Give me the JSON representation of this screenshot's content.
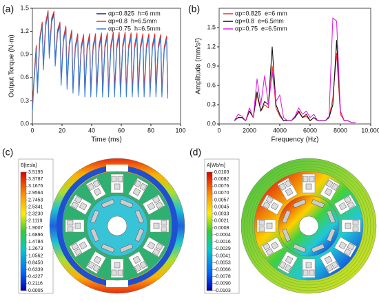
{
  "chart_data": [
    {
      "type": "line",
      "panel_label": "(a)",
      "xlabel": "Time (ms)",
      "ylabel": "Output Torque (N·m)",
      "x": [
        0,
        1,
        2.6,
        3.4,
        5,
        6.6,
        7.4,
        9,
        10.6,
        11.4,
        13,
        14.6,
        15.4,
        17,
        18.6,
        19.4,
        21,
        22.6,
        23.4,
        25,
        26.6,
        27.4,
        29,
        30.6,
        31.4,
        33,
        34.6,
        35.4,
        37,
        38.6,
        39.4,
        41,
        42.6,
        43.4,
        45,
        46.6,
        47.4,
        49,
        50.6,
        51.4,
        53,
        54.6,
        55.4,
        57,
        58.6,
        59.4,
        61,
        62.6,
        63.4,
        65,
        66.6,
        67.4,
        69,
        70.6,
        71.4,
        73,
        74.6,
        75.4,
        77,
        78.6,
        79.4,
        81,
        82.6,
        83.4,
        85,
        86.6,
        87.4,
        89,
        90.6,
        91.4
      ],
      "series": [
        {
          "name": "αp=0.825  h=6 mm",
          "color": "#1a2a6c",
          "values": [
            0.2,
            0.55,
            1.0,
            0.45,
            1.1,
            1.3,
            0.75,
            1.3,
            1.45,
            0.9,
            1.35,
            1.44,
            0.8,
            1.2,
            1.3,
            0.55,
            1.1,
            1.25,
            0.5,
            1.05,
            1.2,
            0.45,
            1.0,
            1.15,
            0.42,
            1.0,
            1.14,
            0.4,
            1.0,
            1.15,
            0.4,
            1.0,
            1.15,
            0.4,
            1.0,
            1.16,
            0.4,
            1.01,
            1.16,
            0.4,
            1.01,
            1.17,
            0.4,
            1.01,
            1.17,
            0.4,
            1.01,
            1.17,
            0.4,
            1.0,
            1.16,
            0.4,
            1.0,
            1.16,
            0.4,
            1.0,
            1.15,
            0.4,
            1.0,
            1.15,
            0.4,
            1.0,
            1.15,
            0.4,
            1.0,
            1.14,
            0.4,
            0.98,
            1.12,
            0.38
          ]
        },
        {
          "name": "αp=0.8  h=6.5mm",
          "color": "#e8312a",
          "values": [
            0.2,
            0.57,
            1.02,
            0.47,
            1.12,
            1.32,
            0.77,
            1.32,
            1.47,
            0.92,
            1.37,
            1.46,
            0.82,
            1.22,
            1.32,
            0.57,
            1.12,
            1.27,
            0.52,
            1.07,
            1.22,
            0.47,
            1.02,
            1.17,
            0.44,
            1.02,
            1.16,
            0.42,
            1.02,
            1.17,
            0.42,
            1.02,
            1.17,
            0.42,
            1.02,
            1.18,
            0.42,
            1.03,
            1.18,
            0.42,
            1.03,
            1.19,
            0.42,
            1.03,
            1.19,
            0.42,
            1.03,
            1.19,
            0.42,
            1.02,
            1.18,
            0.42,
            1.02,
            1.18,
            0.42,
            1.02,
            1.17,
            0.42,
            1.02,
            1.17,
            0.42,
            1.02,
            1.17,
            0.42,
            1.02,
            1.16,
            0.42,
            1.0,
            1.14,
            0.4
          ]
        },
        {
          "name": "αp=0.75  h=6.5mm",
          "color": "#3a7fd5",
          "values": [
            0.15,
            0.5,
            0.97,
            0.4,
            1.07,
            1.27,
            0.7,
            1.27,
            1.42,
            0.85,
            1.32,
            1.41,
            0.75,
            1.17,
            1.27,
            0.5,
            1.07,
            1.22,
            0.45,
            1.02,
            1.17,
            0.4,
            0.97,
            1.12,
            0.37,
            0.97,
            1.11,
            0.35,
            0.97,
            1.12,
            0.35,
            0.97,
            1.12,
            0.35,
            0.97,
            1.13,
            0.35,
            0.98,
            1.13,
            0.35,
            0.98,
            1.14,
            0.35,
            0.98,
            1.14,
            0.35,
            0.98,
            1.14,
            0.35,
            0.97,
            1.13,
            0.35,
            0.97,
            1.13,
            0.35,
            0.97,
            1.12,
            0.35,
            0.97,
            1.12,
            0.35,
            0.97,
            1.12,
            0.35,
            0.97,
            1.11,
            0.35,
            0.95,
            1.09,
            0.33
          ]
        }
      ],
      "xlim": [
        0,
        100
      ],
      "xticks": [
        0,
        20,
        40,
        60,
        80,
        100
      ],
      "ylim": [
        0,
        1.5
      ],
      "yticks": [
        {
          "value": 0,
          "label": "0.0"
        },
        0.3,
        0.6,
        0.9,
        1.2,
        1.5
      ],
      "grid": false,
      "legend": "upper right"
    },
    {
      "type": "line",
      "panel_label": "(b)",
      "xlabel": "Frequency (Hz)",
      "ylabel": "Amplitude (mm/s²)",
      "x": [
        1000,
        1250,
        1500,
        1750,
        2000,
        2250,
        2500,
        2750,
        3000,
        3250,
        3500,
        3750,
        4000,
        4250,
        4500,
        4750,
        5000,
        5250,
        5500,
        5750,
        6000,
        6250,
        6500,
        6750,
        7000,
        7250,
        7500,
        7750,
        8000,
        8250,
        8500,
        8750,
        9000
      ],
      "series": [
        {
          "name": "αp=0.825  e=6 mm",
          "color": "#e8312a",
          "values": [
            0.05,
            0.1,
            0.1,
            0.05,
            0.2,
            0.1,
            0.45,
            0.2,
            0.3,
            0.25,
            0.9,
            0.25,
            0.12,
            0.05,
            0.05,
            0.05,
            0.1,
            0.18,
            0.1,
            0.12,
            0.05,
            0.1,
            0.05,
            0.05,
            0.05,
            0.1,
            0.4,
            1.1,
            0.15,
            0.05,
            0.05,
            0.02,
            0.02
          ]
        },
        {
          "name": "αp=0.8  e=6.5mm",
          "color": "#111111",
          "values": [
            0.05,
            0.1,
            0.1,
            0.05,
            0.2,
            0.1,
            0.5,
            0.2,
            0.35,
            0.3,
            1.2,
            0.3,
            0.15,
            0.05,
            0.05,
            0.05,
            0.1,
            0.2,
            0.1,
            0.15,
            0.05,
            0.1,
            0.05,
            0.05,
            0.05,
            0.1,
            0.3,
            1.3,
            0.2,
            0.05,
            0.05,
            0.02,
            0.02
          ]
        },
        {
          "name": "αp=0.75  e=6.5mm",
          "color": "#e020e0",
          "values": [
            0.05,
            0.15,
            0.12,
            0.05,
            0.25,
            0.1,
            0.7,
            0.3,
            0.75,
            0.3,
            0.8,
            0.35,
            0.45,
            0.1,
            0.05,
            0.05,
            0.12,
            0.25,
            0.15,
            0.2,
            0.1,
            0.15,
            0.05,
            0.05,
            0.05,
            0.12,
            1.65,
            1.6,
            0.2,
            0.05,
            0.05,
            0.02,
            0.02
          ]
        }
      ],
      "xlim": [
        0,
        10000
      ],
      "xticks": [
        0,
        2000,
        4000,
        6000,
        8000,
        {
          "value": 10000,
          "label": "10,000"
        }
      ],
      "ylim": [
        0,
        1.8
      ],
      "yticks": [
        {
          "value": 0,
          "label": "0.0"
        },
        0.3,
        0.6,
        0.9,
        1.2,
        1.5
      ],
      "grid": false,
      "legend": "upper left"
    }
  ],
  "contour_plots": [
    {
      "label": "(c)",
      "title": "B[tesla]",
      "levels": [
        "3.5195",
        "3.3787",
        "3.1676",
        "2.9564",
        "2.7453",
        "2.5341",
        "2.3230",
        "2.1119",
        "1.9007",
        "1.6896",
        "1.4784",
        "1.2673",
        "1.0562",
        "0.8450",
        "0.6339",
        "0.4227",
        "0.2116",
        "0.0005"
      ]
    },
    {
      "label": "(d)",
      "title": "A[Wb/m]",
      "levels": [
        "0.0103",
        "0.0082",
        "0.0076",
        "0.0070",
        "0.0057",
        "0.0045",
        "0.0033",
        "0.0021",
        "0.0008",
        "-0.0004",
        "-0.0016",
        "-0.0029",
        "-0.0041",
        "-0.0053",
        "-0.0066",
        "-0.0078",
        "-0.0090",
        "-0.0103"
      ]
    }
  ]
}
